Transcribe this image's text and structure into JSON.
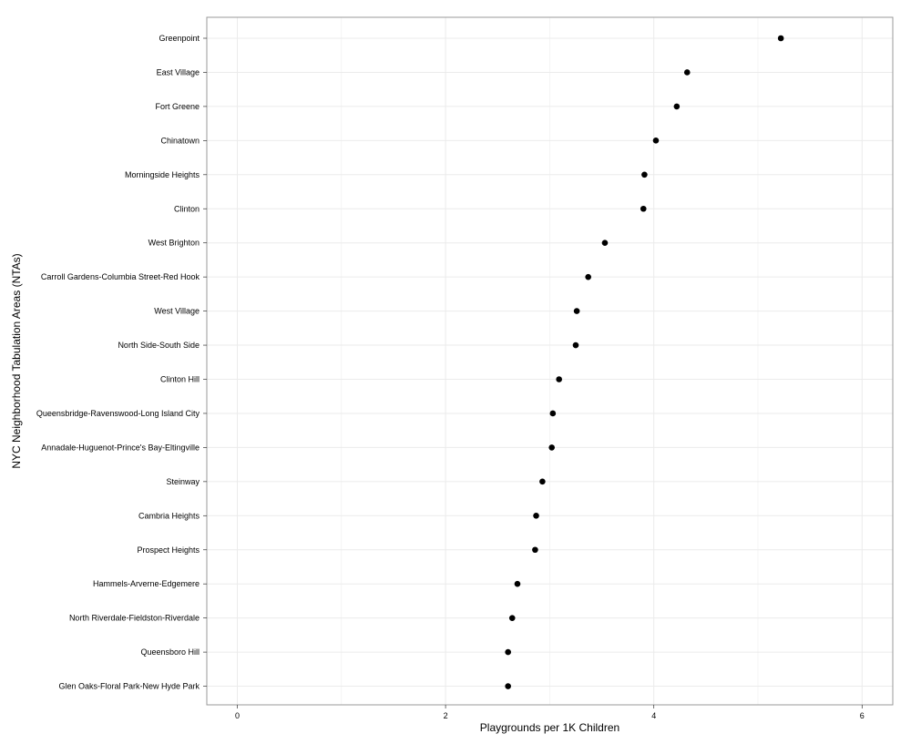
{
  "chart_data": {
    "type": "scatter",
    "title": "",
    "xlabel": "Playgrounds per 1K Children",
    "ylabel": "NYC Neighborhood Tabulation Areas (NTAs)",
    "xlim": [
      -0.29,
      6.29
    ],
    "x_ticks": [
      0,
      2,
      4,
      6
    ],
    "x_tick_labels": [
      "0",
      "2",
      "4",
      "6"
    ],
    "grid": true,
    "legend": "none",
    "point_color": "#000000",
    "grid_color": "#ebebeb",
    "panel_border_color": "#999999",
    "categories": [
      "Greenpoint",
      "East Village",
      "Fort Greene",
      "Chinatown",
      "Morningside Heights",
      "Clinton",
      "West Brighton",
      "Carroll Gardens-Columbia Street-Red Hook",
      "West Village",
      "North Side-South Side",
      "Clinton Hill",
      "Queensbridge-Ravenswood-Long Island City",
      "Annadale-Huguenot-Prince's Bay-Eltingville",
      "Steinway",
      "Cambria Heights",
      "Prospect Heights",
      "Hammels-Arverne-Edgemere",
      "North Riverdale-Fieldston-Riverdale",
      "Queensboro Hill",
      "Glen Oaks-Floral Park-New Hyde Park"
    ],
    "values": [
      5.22,
      4.32,
      4.22,
      4.02,
      3.91,
      3.9,
      3.53,
      3.37,
      3.26,
      3.25,
      3.09,
      3.03,
      3.02,
      2.93,
      2.87,
      2.86,
      2.69,
      2.64,
      2.6,
      2.6
    ]
  }
}
